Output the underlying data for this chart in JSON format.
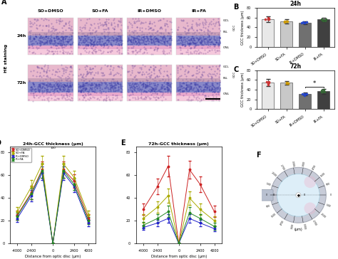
{
  "panel_labels": [
    "A",
    "B",
    "C",
    "D",
    "E",
    "F"
  ],
  "groups": [
    "SO+DMSO",
    "SO+FA",
    "IR+DMSO",
    "IR+FA"
  ],
  "B_values": [
    57,
    52,
    49,
    56
  ],
  "B_errors": [
    6,
    4,
    3,
    4
  ],
  "C_values": [
    55,
    54,
    31,
    37
  ],
  "C_errors": [
    7,
    4,
    3,
    5
  ],
  "B_title": "24h",
  "C_title": "72h",
  "ylabel_BC": "GCC thickness (μm)",
  "ylim_BC": [
    0,
    80
  ],
  "yticks_BC": [
    0,
    20,
    40,
    60,
    80
  ],
  "bar_colors": [
    "#e8e8e8",
    "#c8c8c8",
    "#707070",
    "#404040"
  ],
  "dot_colors_B": [
    "#cc3333",
    "#cc9900",
    "#2244cc",
    "#336633"
  ],
  "dot_colors_C": [
    "#cc3333",
    "#cc9900",
    "#2244cc",
    "#336633"
  ],
  "D_title": "24h-GCC thickness (μm)",
  "E_title": "72h-GCC thickness (μm)",
  "xlabel_DE": "Distance from optic disc (μm)",
  "x_positions": [
    -4000,
    -2400,
    -1200,
    0,
    1200,
    2400,
    4000
  ],
  "D_SO_DMSO": [
    25,
    45,
    65,
    0,
    65,
    55,
    22
  ],
  "D_SO_FA": [
    28,
    50,
    70,
    0,
    70,
    58,
    25
  ],
  "D_IR_DMSO": [
    22,
    42,
    62,
    0,
    62,
    50,
    18
  ],
  "D_IR_FA": [
    24,
    44,
    64,
    0,
    64,
    52,
    20
  ],
  "D_SO_DMSO_err": [
    4,
    6,
    7,
    0,
    7,
    6,
    4
  ],
  "D_SO_FA_err": [
    4,
    6,
    7,
    0,
    7,
    6,
    4
  ],
  "D_IR_DMSO_err": [
    3,
    5,
    6,
    0,
    6,
    5,
    3
  ],
  "D_IR_FA_err": [
    3,
    5,
    6,
    0,
    6,
    5,
    3
  ],
  "E_SO_DMSO": [
    30,
    50,
    68,
    0,
    65,
    52,
    28
  ],
  "E_SO_FA": [
    22,
    32,
    42,
    0,
    40,
    30,
    20
  ],
  "E_IR_DMSO": [
    14,
    18,
    22,
    0,
    22,
    18,
    13
  ],
  "E_IR_FA": [
    16,
    22,
    28,
    0,
    27,
    22,
    15
  ],
  "E_SO_DMSO_err": [
    5,
    7,
    9,
    0,
    8,
    7,
    5
  ],
  "E_SO_FA_err": [
    4,
    5,
    6,
    0,
    6,
    5,
    4
  ],
  "E_IR_DMSO_err": [
    2,
    3,
    4,
    0,
    4,
    3,
    2
  ],
  "E_IR_FA_err": [
    3,
    4,
    5,
    0,
    5,
    4,
    3
  ],
  "colors_line": [
    "#cc2222",
    "#aaaa00",
    "#2222cc",
    "#228822"
  ],
  "legend_labels": [
    "SO+DMSO",
    "SO+FA",
    "IR+DMSO",
    "IR+FA"
  ],
  "he_labels_top": [
    "SO+DMSO",
    "SO+FA",
    "IR+DMSO",
    "IR+FA"
  ],
  "he_row_labels": [
    "24h",
    "72h"
  ],
  "F_labels": [
    "3300",
    "2700",
    "1500",
    "500",
    "0",
    "-500",
    "-1500",
    "-2700",
    "-3300"
  ],
  "F_angles_right": [
    80,
    60,
    40,
    20,
    0,
    -20,
    -40,
    -60,
    -80
  ],
  "F_angles_left": [
    100,
    120,
    140,
    160,
    180,
    -160,
    -140,
    -120,
    -100
  ]
}
